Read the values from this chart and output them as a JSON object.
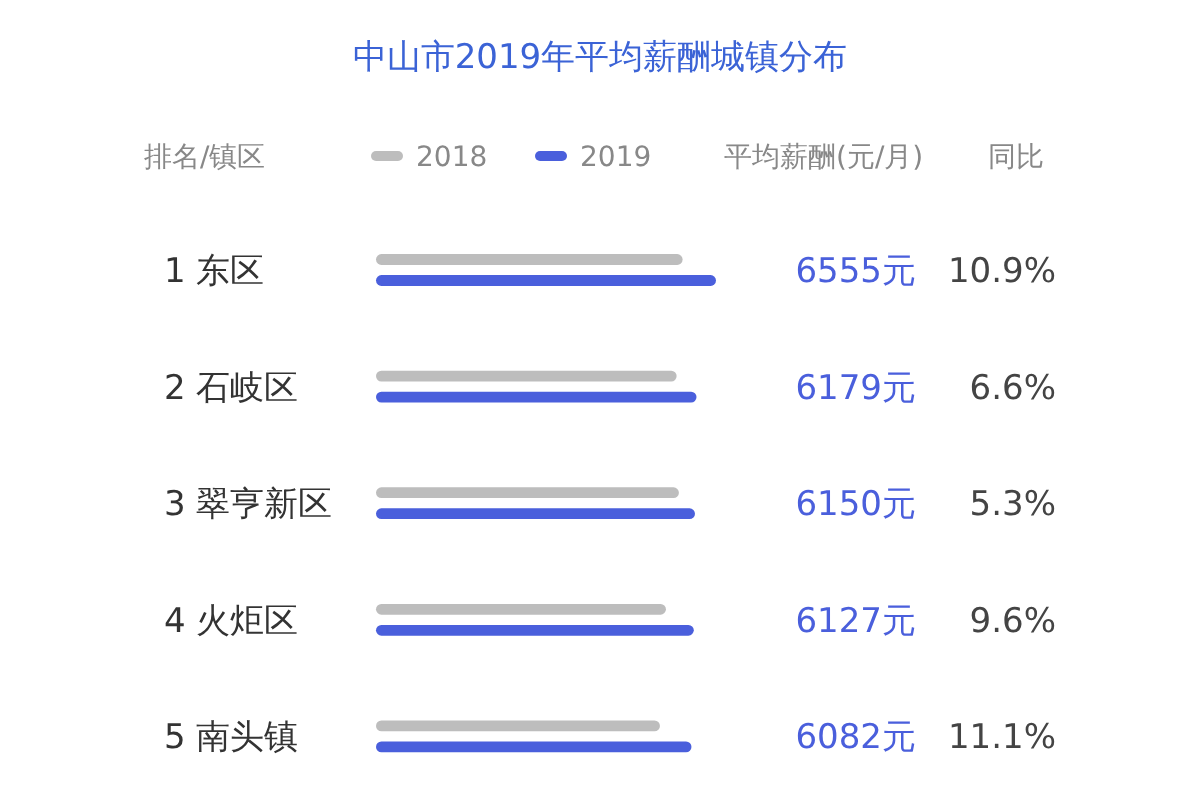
{
  "chart_data": {
    "type": "bar",
    "orientation": "horizontal",
    "title": "中山市2019年平均薪酬城镇分布",
    "ylabel": "排名/镇区",
    "categories": [
      "1 东区",
      "2 石岐区",
      "3 翠亨新区",
      "4 火炬区",
      "5 南头镇"
    ],
    "series": [
      {
        "name": "2018",
        "color": "#bdbdbd",
        "values": [
          5911,
          5796,
          5840,
          5590,
          5474
        ]
      },
      {
        "name": "2019",
        "color": "#4a5fdc",
        "values": [
          6555,
          6179,
          6150,
          6127,
          6082
        ],
        "value_labels": [
          "6555元",
          "6179元",
          "6150元",
          "6127元",
          "6082元"
        ]
      }
    ],
    "annotations": [
      "平均薪酬(元/月)",
      "同比",
      "10.9%",
      "6.6%",
      "5.3%",
      "9.6%",
      "11.1%"
    ],
    "legend": "top"
  }
}
